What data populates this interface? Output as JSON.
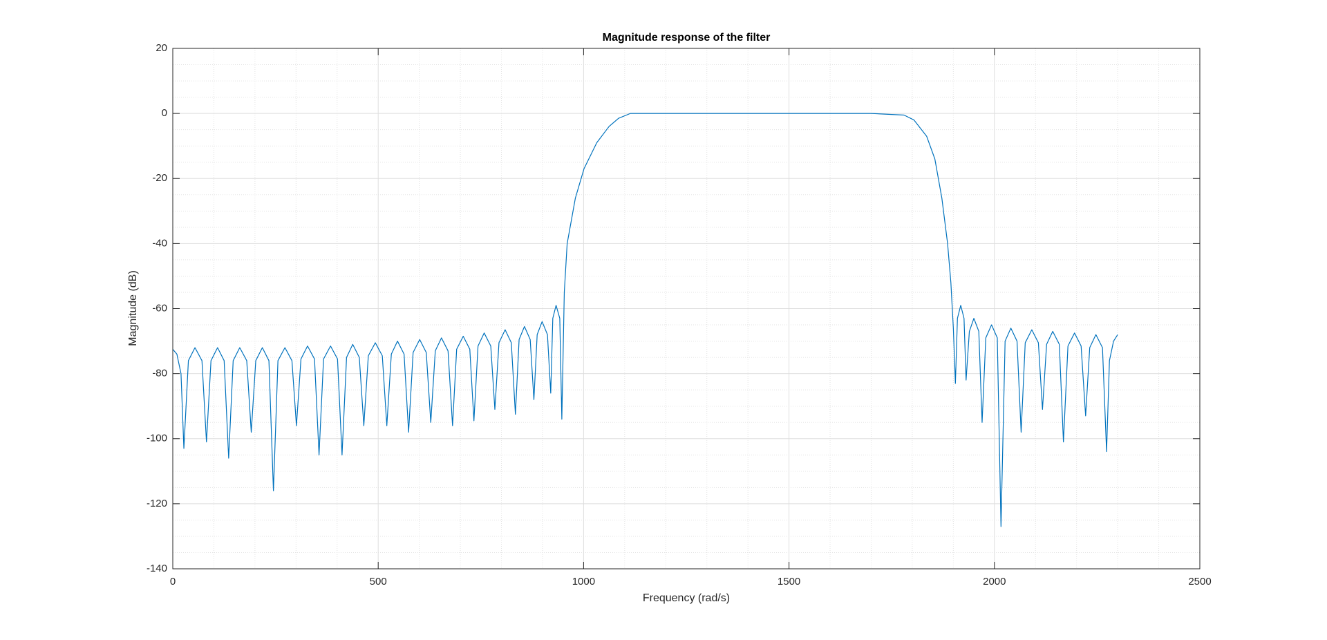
{
  "chart_data": {
    "type": "line",
    "title": "Magnitude response of the filter",
    "xlabel": "Frequency (rad/s)",
    "ylabel": "Magnitude (dB)",
    "xlim": [
      0,
      2500
    ],
    "ylim": [
      -140,
      20
    ],
    "xticks": [
      0,
      500,
      1000,
      1500,
      2000,
      2500
    ],
    "yticks": [
      -140,
      -120,
      -100,
      -80,
      -60,
      -40,
      -20,
      0,
      20
    ],
    "xminorticks": [
      100,
      200,
      300,
      400,
      600,
      700,
      800,
      900,
      1100,
      1200,
      1300,
      1400,
      1600,
      1700,
      1800,
      1900,
      2100,
      2200,
      2300,
      2400
    ],
    "yminorticks": [
      -135,
      -130,
      -125,
      -115,
      -110,
      -105,
      -95,
      -90,
      -85,
      -75,
      -70,
      -65,
      -55,
      -50,
      -45,
      -35,
      -30,
      -25,
      -15,
      -10,
      -5,
      5,
      10,
      15
    ],
    "grid": true,
    "minor_grid": true,
    "series": [
      {
        "name": "Magnitude",
        "color": "#0072bd",
        "x": [
          0,
          10,
          20,
          27,
          38,
          54,
          71,
          82,
          93,
          109,
          125,
          136,
          147,
          163,
          180,
          191,
          202,
          218,
          234,
          245,
          256,
          273,
          290,
          301,
          312,
          328,
          345,
          356,
          367,
          384,
          401,
          412,
          423,
          438,
          454,
          465,
          476,
          493,
          510,
          521,
          532,
          547,
          563,
          574,
          585,
          601,
          617,
          628,
          639,
          654,
          670,
          681,
          691,
          707,
          723,
          733,
          743,
          758,
          774,
          784,
          794,
          809,
          824,
          834,
          843,
          856,
          870,
          879,
          887,
          899,
          912,
          920,
          925,
          933,
          942,
          947,
          953,
          960,
          980,
          1001,
          1032,
          1062,
          1085,
          1114,
          1700,
          1780,
          1804,
          1835,
          1855,
          1872,
          1886,
          1894,
          1900,
          1905,
          1910,
          1918,
          1926,
          1931,
          1939,
          1950,
          1962,
          1970,
          1979,
          1993,
          2007,
          2016,
          2026,
          2040,
          2055,
          2065,
          2075,
          2091,
          2107,
          2117,
          2127,
          2142,
          2158,
          2168,
          2179,
          2195,
          2211,
          2222,
          2232,
          2247,
          2263,
          2273,
          2280,
          2290,
          2300
        ],
        "values": [
          -72.5,
          -74,
          -80,
          -103,
          -76,
          -72,
          -76,
          -101,
          -76,
          -72,
          -76,
          -106,
          -76,
          -72,
          -76,
          -98,
          -76,
          -72,
          -76,
          -116,
          -76,
          -72,
          -76,
          -96,
          -75.5,
          -71.5,
          -75.5,
          -105,
          -75.5,
          -71.5,
          -75.5,
          -105,
          -75,
          -71,
          -75,
          -96,
          -74.5,
          -70.5,
          -74.5,
          -96,
          -74,
          -70,
          -74,
          -98,
          -73.5,
          -69.5,
          -73.5,
          -95,
          -73,
          -69,
          -73,
          -96,
          -72.5,
          -68.5,
          -72.5,
          -94.5,
          -71.5,
          -67.5,
          -71.5,
          -91,
          -70.5,
          -66.5,
          -70.5,
          -92.5,
          -69.5,
          -65.5,
          -69.5,
          -88,
          -68,
          -64,
          -68,
          -86,
          -63,
          -59,
          -63,
          -94,
          -55,
          -40,
          -26,
          -17,
          -9,
          -4,
          -1.5,
          0,
          0,
          -0.5,
          -2,
          -7,
          -14,
          -26,
          -40,
          -52,
          -66,
          -83,
          -63,
          -59,
          -63,
          -82,
          -67,
          -63,
          -67,
          -95,
          -69,
          -65,
          -69,
          -127,
          -70,
          -66,
          -70,
          -98,
          -70.5,
          -66.5,
          -70.5,
          -91,
          -71,
          -67,
          -71,
          -101,
          -71.5,
          -67.5,
          -71.5,
          -93,
          -72,
          -68,
          -72,
          -104,
          -76,
          -70,
          -68
        ]
      }
    ]
  }
}
